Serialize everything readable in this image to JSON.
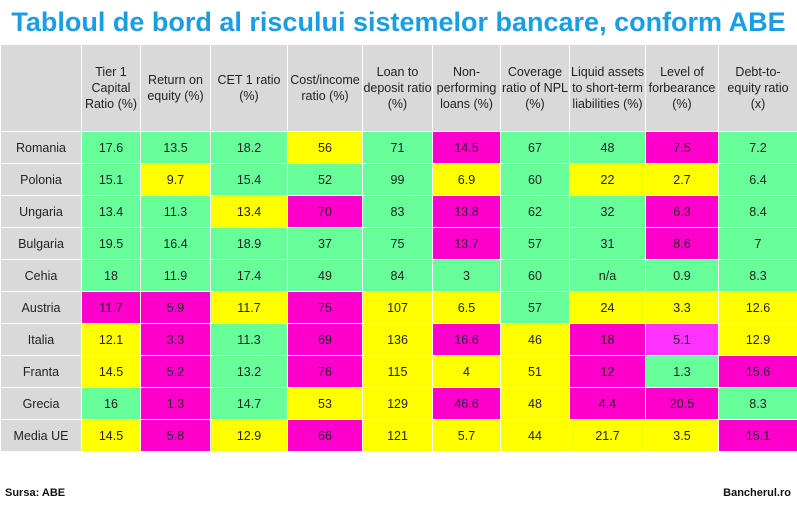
{
  "title": "Tabloul de bord al riscului sistemelor bancare, conform ABE",
  "source": "Sursa: ABE",
  "site": "Bancherul.ro",
  "colors": {
    "green": "#66ff99",
    "yellow": "#ffff00",
    "magenta": "#ff00cc",
    "pink": "#ff33ff",
    "header": "#d9d9d9"
  },
  "chart_data": {
    "type": "table",
    "columns": [
      "Tier 1 Capital Ratio (%)",
      "Return on equity (%)",
      "CET 1 ratio (%)",
      "Cost/income ratio (%)",
      "Loan to deposit ratio (%)",
      "Non-performing loans (%)",
      "Coverage ratio of NPL (%)",
      "Liquid assets to short-term liabilities (%)",
      "Level of forbearance (%)",
      "Debt-to-equity ratio (x)"
    ],
    "rows": [
      {
        "label": "Romania",
        "values": [
          "17.6",
          "13.5",
          "18.2",
          "56",
          "71",
          "14.5",
          "67",
          "48",
          "7.5",
          "7.2"
        ],
        "colors": [
          "green",
          "green",
          "green",
          "yellow",
          "green",
          "magenta",
          "green",
          "green",
          "magenta",
          "green"
        ]
      },
      {
        "label": "Polonia",
        "values": [
          "15.1",
          "9.7",
          "15.4",
          "52",
          "99",
          "6.9",
          "60",
          "22",
          "2.7",
          "6.4"
        ],
        "colors": [
          "green",
          "yellow",
          "green",
          "green",
          "green",
          "yellow",
          "green",
          "yellow",
          "yellow",
          "green"
        ]
      },
      {
        "label": "Ungaria",
        "values": [
          "13.4",
          "11.3",
          "13.4",
          "70",
          "83",
          "13.8",
          "62",
          "32",
          "6.3",
          "8.4"
        ],
        "colors": [
          "green",
          "green",
          "yellow",
          "magenta",
          "green",
          "magenta",
          "green",
          "green",
          "magenta",
          "green"
        ]
      },
      {
        "label": "Bulgaria",
        "values": [
          "19.5",
          "16.4",
          "18.9",
          "37",
          "75",
          "13.7",
          "57",
          "31",
          "8.6",
          "7"
        ],
        "colors": [
          "green",
          "green",
          "green",
          "green",
          "green",
          "magenta",
          "green",
          "green",
          "magenta",
          "green"
        ]
      },
      {
        "label": "Cehia",
        "values": [
          "18",
          "11.9",
          "17.4",
          "49",
          "84",
          "3",
          "60",
          "n/a",
          "0.9",
          "8.3"
        ],
        "colors": [
          "green",
          "green",
          "green",
          "green",
          "green",
          "green",
          "green",
          "green",
          "green",
          "green"
        ]
      },
      {
        "label": "Austria",
        "values": [
          "11.7",
          "5.9",
          "11.7",
          "75",
          "107",
          "6.5",
          "57",
          "24",
          "3.3",
          "12.6"
        ],
        "colors": [
          "magenta",
          "magenta",
          "yellow",
          "magenta",
          "yellow",
          "yellow",
          "green",
          "yellow",
          "yellow",
          "yellow"
        ]
      },
      {
        "label": "Italia",
        "values": [
          "12.1",
          "3.3",
          "11.3",
          "69",
          "136",
          "16.6",
          "46",
          "18",
          "5.1",
          "12.9"
        ],
        "colors": [
          "yellow",
          "magenta",
          "green",
          "magenta",
          "yellow",
          "magenta",
          "yellow",
          "magenta",
          "pink",
          "yellow"
        ]
      },
      {
        "label": "Franta",
        "values": [
          "14.5",
          "5.2",
          "13.2",
          "76",
          "115",
          "4",
          "51",
          "12",
          "1.3",
          "15.6"
        ],
        "colors": [
          "yellow",
          "magenta",
          "green",
          "magenta",
          "yellow",
          "yellow",
          "yellow",
          "magenta",
          "green",
          "magenta"
        ]
      },
      {
        "label": "Grecia",
        "values": [
          "16",
          "1.3",
          "14.7",
          "53",
          "129",
          "46.6",
          "48",
          "4.4",
          "20.5",
          "8.3"
        ],
        "colors": [
          "green",
          "magenta",
          "green",
          "yellow",
          "yellow",
          "magenta",
          "yellow",
          "magenta",
          "magenta",
          "green"
        ]
      },
      {
        "label": "Media UE",
        "values": [
          "14.5",
          "5.8",
          "12.9",
          "66",
          "121",
          "5.7",
          "44",
          "21.7",
          "3.5",
          "15.1"
        ],
        "colors": [
          "yellow",
          "magenta",
          "yellow",
          "magenta",
          "yellow",
          "yellow",
          "yellow",
          "yellow",
          "yellow",
          "magenta"
        ]
      }
    ]
  }
}
